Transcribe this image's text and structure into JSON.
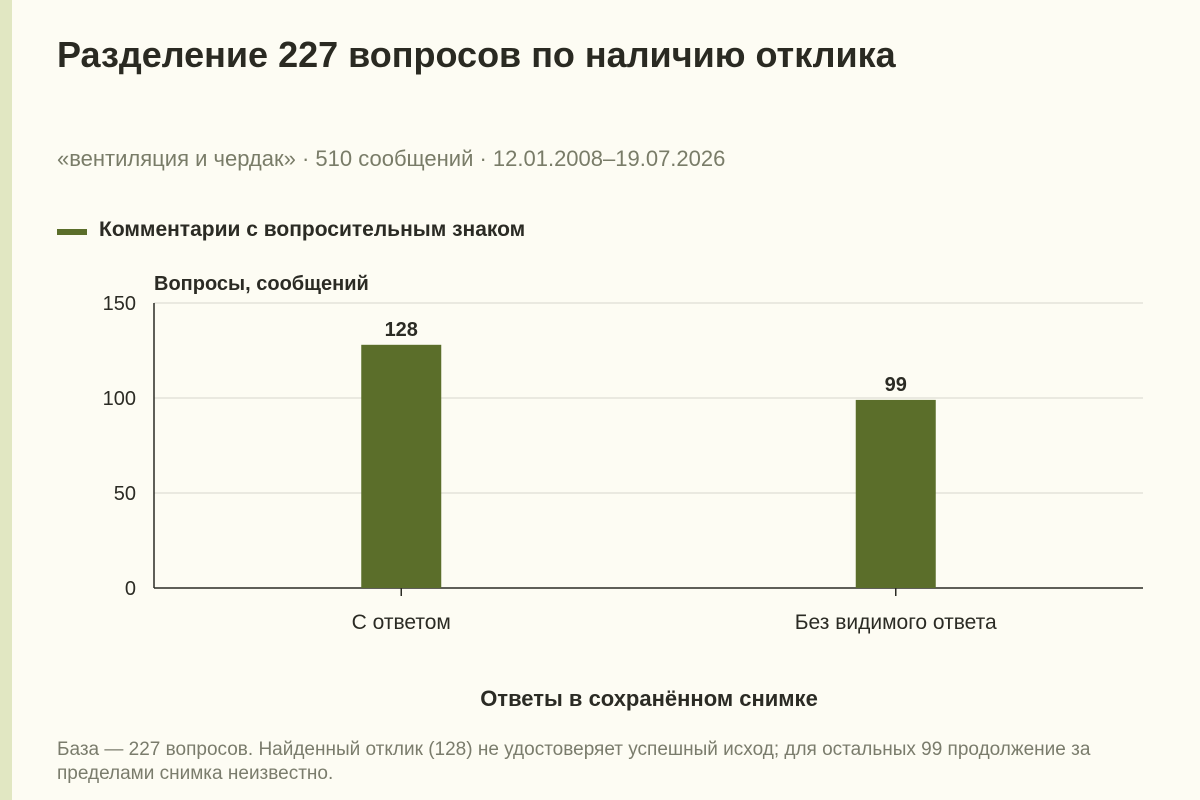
{
  "header": {
    "title": "Разделение 227 вопросов по наличию отклика",
    "subtitle": "«вентиляция и чердак» · 510 сообщений · 12.01.2008–19.07.2026"
  },
  "footnote": "База — 227 вопросов. Найденный отклик (128) не удостоверяет успешный исход; для остальных 99 продолжение за пределами снимка неизвестно.",
  "colors": {
    "bar": "#5b6e2a",
    "grid": "#d7d6cc",
    "axis": "#2b2b24",
    "background": "#fdfcf3"
  },
  "chart_data": {
    "type": "bar",
    "categories": [
      "С ответом",
      "Без видимого ответа"
    ],
    "series": [
      {
        "name": "Комментарии с вопросительным знаком",
        "values": [
          128,
          99
        ],
        "color": "#5b6e2a"
      }
    ],
    "data_labels": [
      "128",
      "99"
    ],
    "xlabel": "Ответы в сохранённом снимке",
    "ylabel": "Вопросы, сообщений",
    "ylim": [
      0,
      150
    ],
    "yticks": [
      0,
      50,
      100,
      150
    ],
    "ytick_labels": [
      "0",
      "50",
      "100",
      "150"
    ],
    "grid": true,
    "legend_position": "top-left"
  }
}
